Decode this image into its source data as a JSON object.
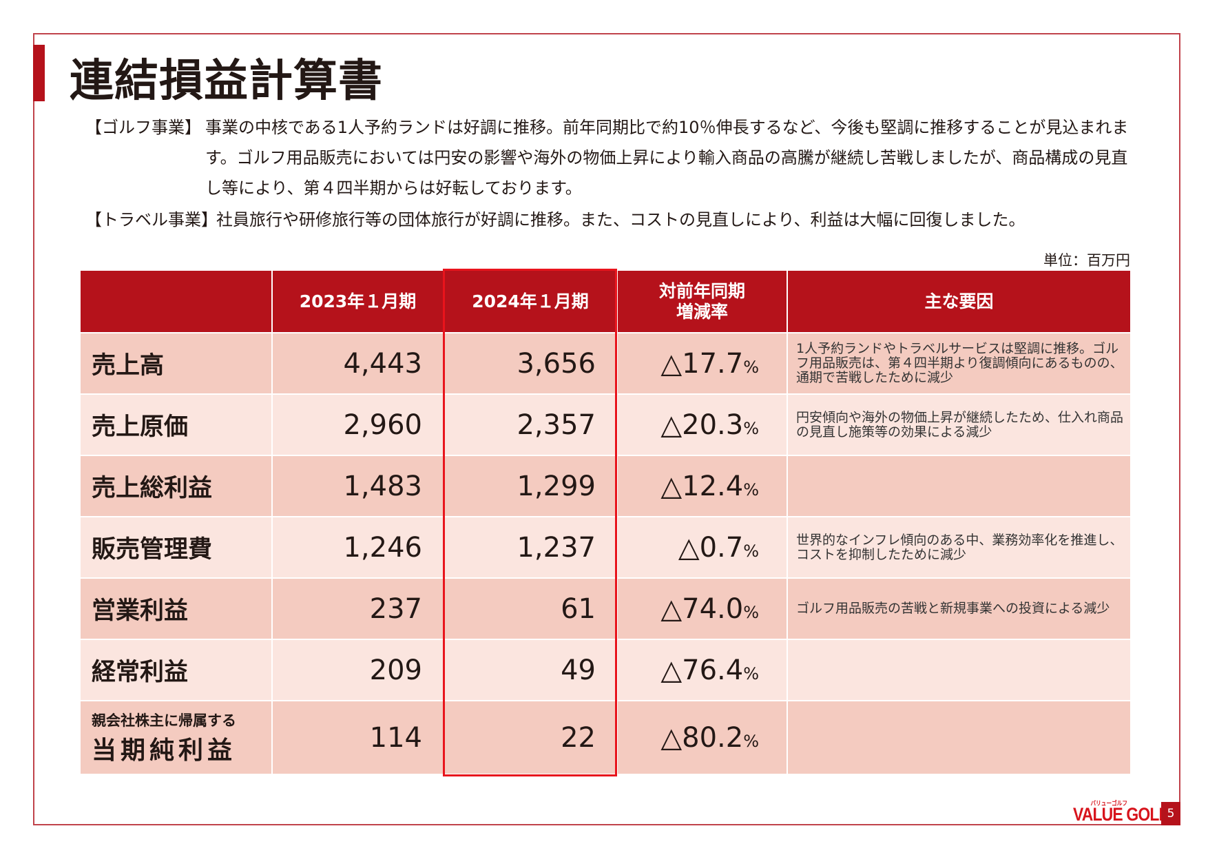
{
  "title": "連結損益計算書",
  "paragraphs": [
    {
      "label": "【ゴルフ事業】",
      "text": "事業の中核である1人予約ランドは好調に推移。前年同期比で約10％伸長するなど、今後も堅調に推移することが見込まれます。ゴルフ用品販売においては円安の影響や海外の物価上昇により輸入商品の高騰が継続し苦戦しましたが、商品構成の見直し等により、第４四半期からは好転しております。"
    },
    {
      "label": "【トラベル事業】",
      "text": "社員旅行や研修旅行等の団体旅行が好調に推移。また、コストの見直しにより、利益は大幅に回復しました。"
    }
  ],
  "unit": "単位：百万円",
  "table": {
    "headers": [
      "",
      "2023年１月期",
      "2024年１月期",
      "対前年同期\n増減率",
      "主な要因"
    ],
    "rows": [
      {
        "label": "売上高",
        "fy2023": "4,443",
        "fy2024": "3,656",
        "rate": "△17.7",
        "pct": "%",
        "note": "1人予約ランドやトラベルサービスは堅調に推移。ゴルフ用品販売は、第４四半期より復調傾向にあるものの、通期で苦戦したために減少"
      },
      {
        "label": "売上原価",
        "fy2023": "2,960",
        "fy2024": "2,357",
        "rate": "△20.3",
        "pct": "%",
        "note": "円安傾向や海外の物価上昇が継続したため、仕入れ商品の見直し施策等の効果による減少"
      },
      {
        "label": "売上総利益",
        "fy2023": "1,483",
        "fy2024": "1,299",
        "rate": "△12.4",
        "pct": "%",
        "note": ""
      },
      {
        "label": "販売管理費",
        "fy2023": "1,246",
        "fy2024": "1,237",
        "rate": "△0.7",
        "pct": "%",
        "note": "世界的なインフレ傾向のある中、業務効率化を推進し、コストを抑制したために減少"
      },
      {
        "label": "営業利益",
        "fy2023": "237",
        "fy2024": "61",
        "rate": "△74.0",
        "pct": "%",
        "note": "ゴルフ用品販売の苦戦と新規事業への投資による減少"
      },
      {
        "label": "経常利益",
        "fy2023": "209",
        "fy2024": "49",
        "rate": "△76.4",
        "pct": "%",
        "note": ""
      },
      {
        "label_sub": "親会社株主に帰属する",
        "label": "当期純利益",
        "fy2023": "114",
        "fy2024": "22",
        "rate": "△80.2",
        "pct": "%",
        "note": ""
      }
    ]
  },
  "footer": {
    "logo": "VALUE GOLF",
    "logo_kana": "バリューゴルフ",
    "page": "5"
  },
  "colors": {
    "accent": "#b5121b",
    "highlight": "#e8141c",
    "row_dark": "#f4cbc0",
    "row_light": "#fbe5df"
  }
}
